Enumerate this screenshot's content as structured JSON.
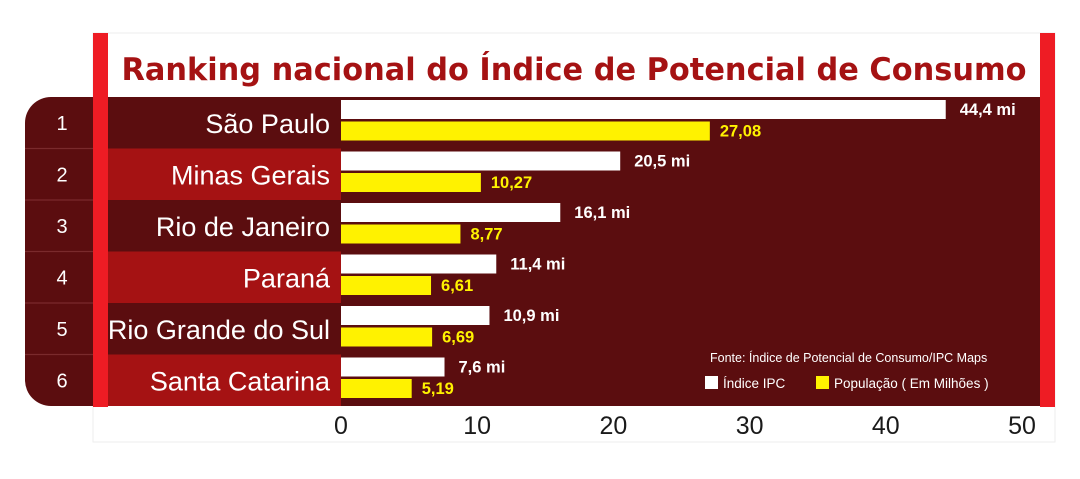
{
  "chart_data": {
    "type": "bar",
    "title": "Ranking nacional do Índice de Potencial de Consumo",
    "ranks": [
      "1",
      "2",
      "3",
      "4",
      "5",
      "6"
    ],
    "categories": [
      "São Paulo",
      "Minas Gerais",
      "Rio de Janeiro",
      "Paraná",
      "Rio Grande do Sul",
      "Santa Catarina"
    ],
    "series": [
      {
        "name": "Índice IPC",
        "color": "#ffffff",
        "values": [
          44.4,
          20.5,
          16.1,
          11.4,
          10.9,
          7.6
        ],
        "labels": [
          "44,4 mi",
          "20,5 mi",
          "16,1 mi",
          "11,4 mi",
          "10,9 mi",
          "7,6 mi"
        ]
      },
      {
        "name": "População ( Em Milhões )",
        "color": "#fff200",
        "values": [
          27.08,
          10.27,
          8.77,
          6.61,
          6.69,
          5.19
        ],
        "labels": [
          "27,08",
          "10,27",
          "8,77",
          "6,61",
          "6,69",
          "5,19"
        ]
      }
    ],
    "xlim": [
      0,
      50
    ],
    "xticks": [
      "0",
      "10",
      "20",
      "30",
      "40",
      "50"
    ],
    "source": "Fonte: Índice de Potencial de Consumo/IPC Maps",
    "legend_position": "bottom-right",
    "grid": false
  },
  "colors": {
    "background": "#ffffff",
    "accent_red": "#ee1c24",
    "row_dark": "#5b0d0f",
    "row_red": "#a51213",
    "plot_bg": "#5b0d0f",
    "title_color": "#a51213",
    "bar_ipc": "#ffffff",
    "bar_pop": "#fff200"
  }
}
